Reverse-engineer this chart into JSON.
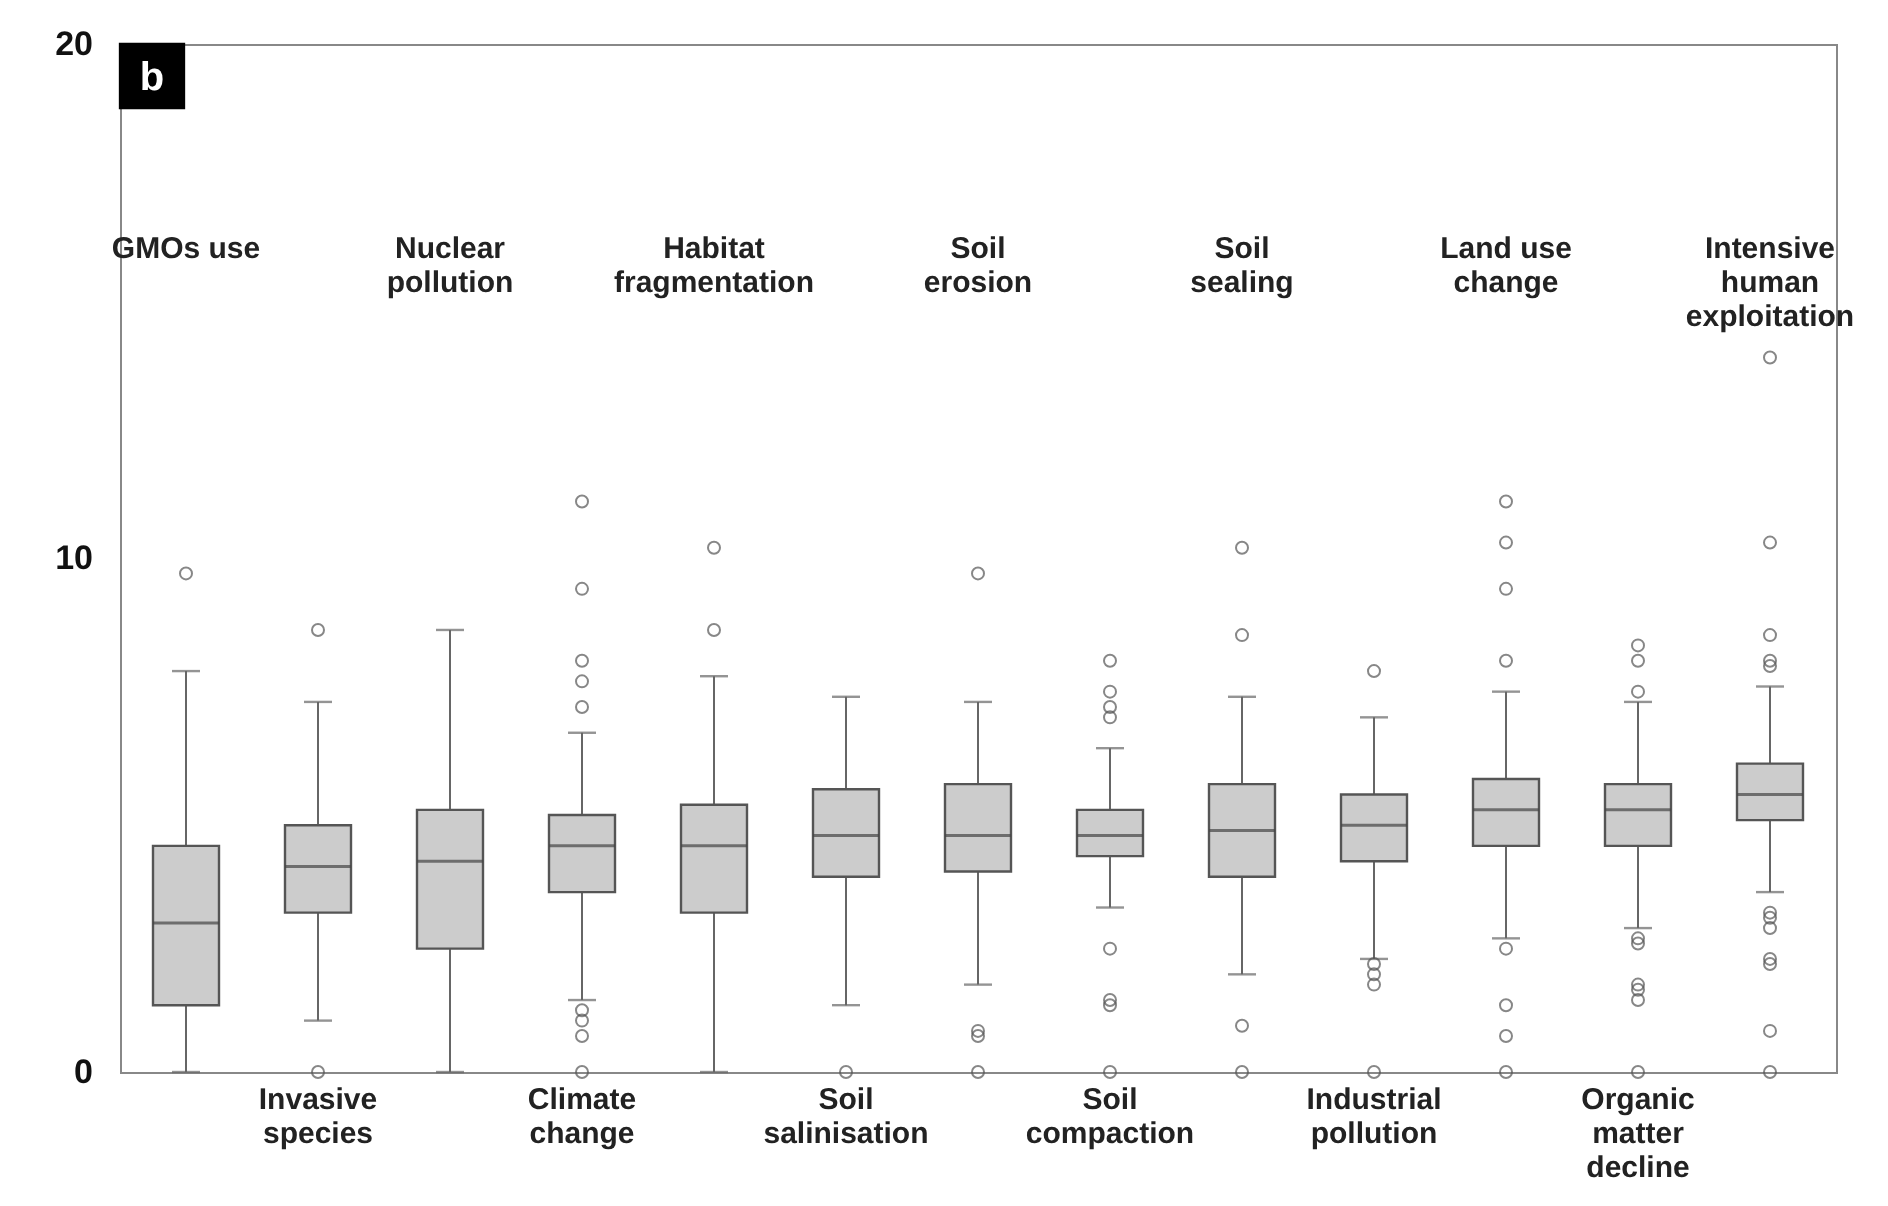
{
  "chart_data": {
    "type": "box",
    "annotations": [
      "b"
    ],
    "color": "#cccccc",
    "grid": false,
    "marker": "circle",
    "categories": [
      "GMOs use",
      "Invasive species",
      "Nuclear pollution",
      "Climate change",
      "Habitat fragmentation",
      "Soil salinisation",
      "Soil erosion",
      "Soil compaction",
      "Soil sealing",
      "Industrial pollution",
      "Land use change",
      "Organic matter decline",
      "Intensive human exploitation"
    ],
    "ylim": [
      0,
      20
    ],
    "yticks": [
      0,
      10,
      20
    ],
    "boxes": [
      {
        "low": 0,
        "q1": 1.3,
        "median": 2.9,
        "q3": 4.4,
        "high": 7.8,
        "outliers": [
          9.7
        ]
      },
      {
        "low": 1.0,
        "q1": 3.1,
        "median": 4.0,
        "q3": 4.8,
        "high": 7.2,
        "outliers": [
          8.6,
          0
        ]
      },
      {
        "low": 0,
        "q1": 2.4,
        "median": 4.1,
        "q3": 5.1,
        "high": 8.6
      },
      {
        "low": 1.4,
        "q1": 3.5,
        "median": 4.4,
        "q3": 5.0,
        "high": 6.6,
        "outliers": [
          11.1,
          9.4,
          8.0,
          7.6,
          7.1,
          1.2,
          1.0,
          0.7,
          0
        ]
      },
      {
        "low": 0,
        "q1": 3.1,
        "median": 4.4,
        "q3": 5.2,
        "high": 7.7,
        "outliers": [
          10.2,
          8.6
        ]
      },
      {
        "low": 1.3,
        "q1": 3.8,
        "median": 4.6,
        "q3": 5.5,
        "high": 7.3,
        "outliers": [
          0
        ]
      },
      {
        "low": 1.7,
        "q1": 3.9,
        "median": 4.6,
        "q3": 5.6,
        "high": 7.2,
        "outliers": [
          9.7,
          0.8,
          0.7,
          0
        ]
      },
      {
        "low": 3.2,
        "q1": 4.2,
        "median": 4.6,
        "q3": 5.1,
        "high": 6.3,
        "outliers": [
          8.0,
          7.4,
          7.1,
          6.9,
          2.4,
          1.4,
          1.3,
          0
        ]
      },
      {
        "low": 1.9,
        "q1": 3.8,
        "median": 4.7,
        "q3": 5.6,
        "high": 7.3,
        "outliers": [
          10.2,
          8.5,
          0.9,
          0
        ]
      },
      {
        "low": 2.2,
        "q1": 4.1,
        "median": 4.8,
        "q3": 5.4,
        "high": 6.9,
        "outliers": [
          7.8,
          2.1,
          1.9,
          1.7,
          0
        ]
      },
      {
        "low": 2.6,
        "q1": 4.4,
        "median": 5.1,
        "q3": 5.7,
        "high": 7.4,
        "outliers": [
          11.1,
          10.3,
          9.4,
          8.0,
          2.4,
          1.3,
          0.7,
          0
        ]
      },
      {
        "low": 2.8,
        "q1": 4.4,
        "median": 5.1,
        "q3": 5.6,
        "high": 7.2,
        "outliers": [
          8.3,
          8.0,
          7.4,
          2.6,
          2.5,
          1.7,
          1.6,
          1.4,
          0
        ]
      },
      {
        "low": 3.5,
        "q1": 4.9,
        "median": 5.4,
        "q3": 6.0,
        "high": 7.5,
        "outliers": [
          13.9,
          10.3,
          8.5,
          8.0,
          7.9,
          3.1,
          3.0,
          2.8,
          2.2,
          2.1,
          0.8,
          0
        ]
      }
    ]
  }
}
